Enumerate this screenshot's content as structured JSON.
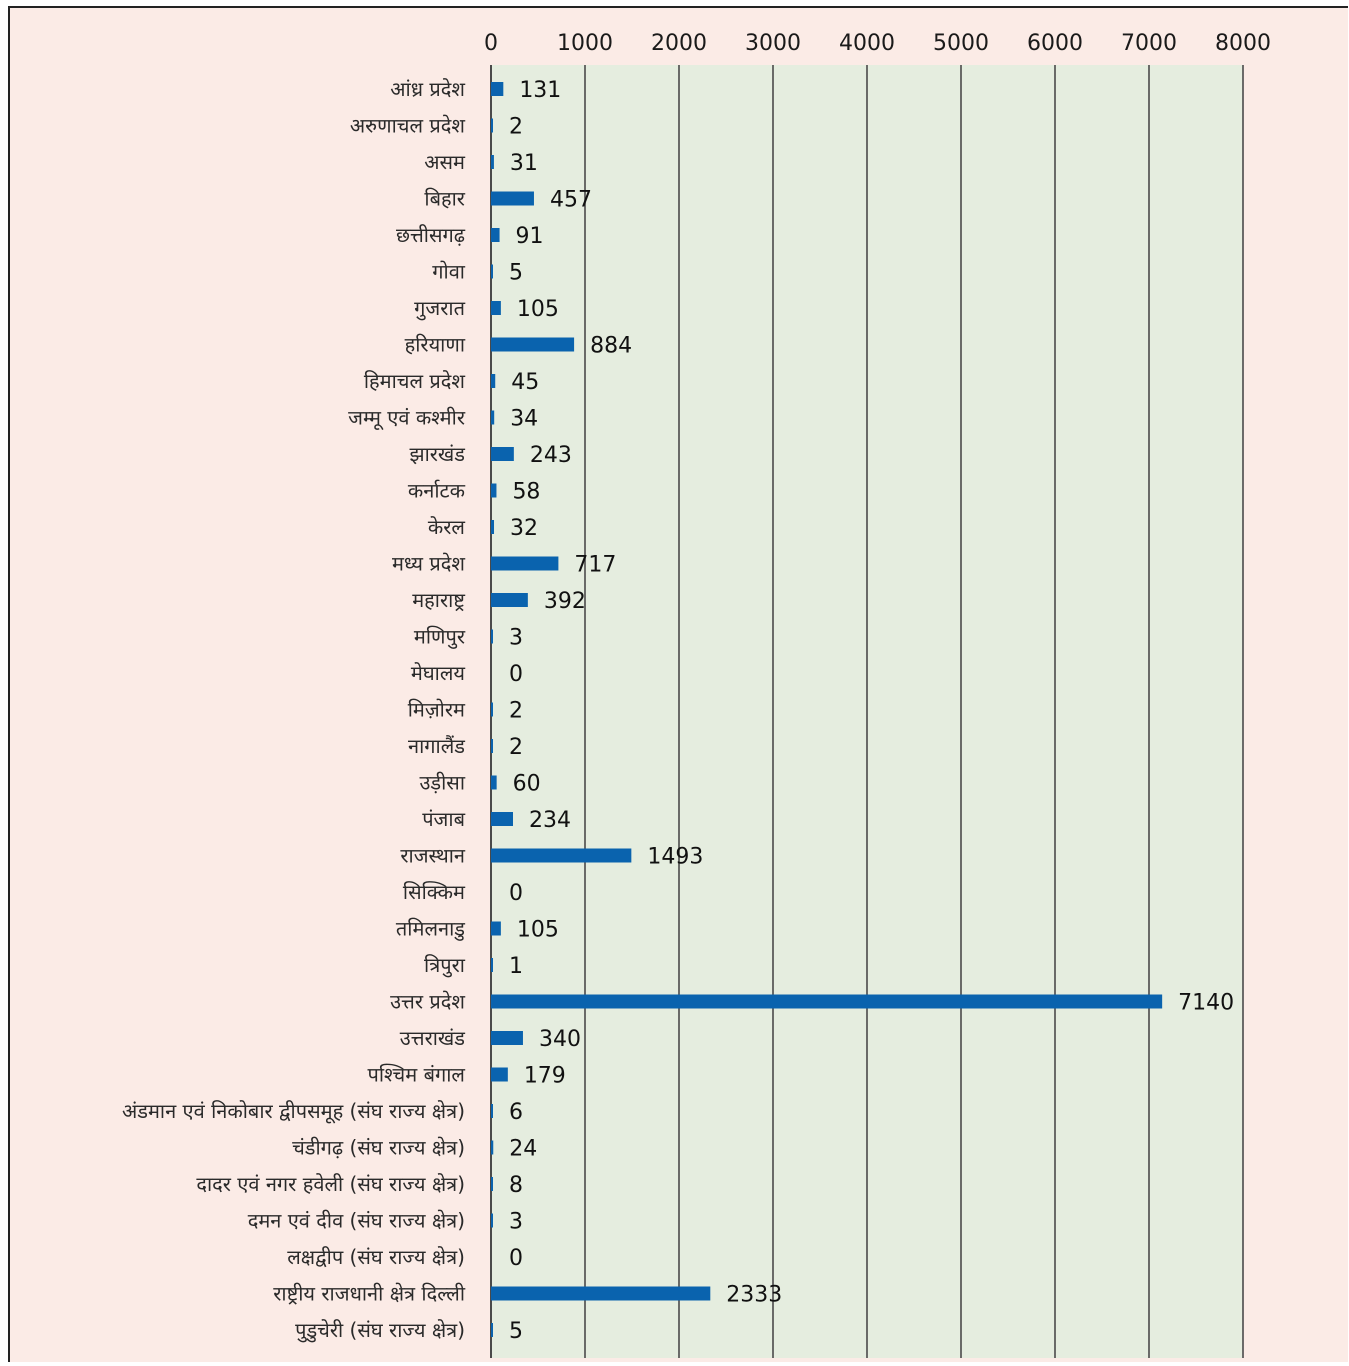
{
  "chart_data": {
    "type": "bar",
    "orientation": "horizontal",
    "title": "",
    "xlabel": "",
    "ylabel": "",
    "xlim": [
      0,
      8000
    ],
    "x_ticks": [
      0,
      1000,
      2000,
      3000,
      4000,
      5000,
      6000,
      7000,
      8000
    ],
    "x_tick_labels": [
      "0",
      "1000",
      "2000",
      "3000",
      "4000",
      "5000",
      "6000",
      "7000",
      "8000"
    ],
    "x_axis_position": "top",
    "grid": true,
    "legend": "none",
    "categories": [
      "आंध्र प्रदेश",
      "अरुणाचल प्रदेश",
      "असम",
      "बिहार",
      "छत्तीसगढ़",
      "गोवा",
      "गुजरात",
      "हरियाणा",
      "हिमाचल प्रदेश",
      "जम्मू एवं कश्मीर",
      "झारखंड",
      "कर्नाटक",
      "केरल",
      "मध्य प्रदेश",
      "महाराष्ट्र",
      "मणिपुर",
      "मेघालय",
      "मिज़ोरम",
      "नागालैंड",
      "उड़ीसा",
      "पंजाब",
      "राजस्थान",
      "सिक्किम",
      "तमिलनाडु",
      "त्रिपुरा",
      "उत्तर प्रदेश",
      "उत्तराखंड",
      "पश्चिम बंगाल",
      "अंडमान एवं निकोबार द्वीपसमूह (संघ राज्य क्षेत्र)",
      "चंडीगढ़ (संघ राज्य क्षेत्र)",
      "दादर एवं नगर हवेली (संघ राज्य क्षेत्र)",
      "दमन एवं दीव (संघ राज्य क्षेत्र)",
      "लक्षद्वीप (संघ राज्य क्षेत्र)",
      "राष्ट्रीय राजधानी क्षेत्र दिल्ली",
      "पुडुचेरी (संघ राज्य क्षेत्र)"
    ],
    "values": [
      131,
      2,
      31,
      457,
      91,
      5,
      105,
      884,
      45,
      34,
      243,
      58,
      32,
      717,
      392,
      3,
      0,
      2,
      2,
      60,
      234,
      1493,
      0,
      105,
      1,
      7140,
      340,
      179,
      6,
      24,
      8,
      3,
      0,
      2333,
      5
    ],
    "value_labels": [
      "131",
      "2",
      "31",
      "457",
      "91",
      "5",
      "105",
      "884",
      "45",
      "34",
      "243",
      "58",
      "32",
      "717",
      "392",
      "3",
      "0",
      "2",
      "2",
      "60",
      "234",
      "1493",
      "0",
      "105",
      "1",
      "7140",
      "340",
      "179",
      "6",
      "24",
      "8",
      "3",
      "0",
      "2333",
      "5"
    ],
    "colors": {
      "bar": "#0a63ae",
      "plot_background": "#e5eddf",
      "page_background": "#fbebe6",
      "grid": "#4a4a4a"
    }
  }
}
